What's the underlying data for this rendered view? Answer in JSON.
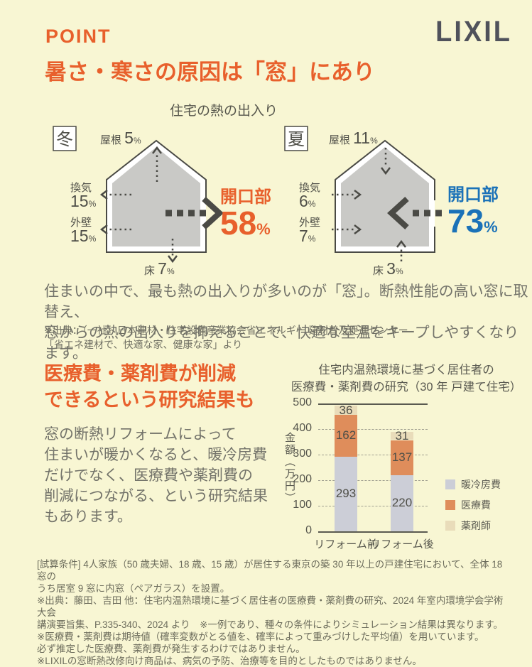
{
  "header": {
    "point": "POINT",
    "title": "暑さ・寒さの原因は「窓」にあり",
    "logo": "LIXIL"
  },
  "units": {
    "percent": "%"
  },
  "diagram": {
    "title": "住宅の熱の出入り",
    "winter": {
      "season": "冬",
      "roof_label": "屋根 ",
      "roof_value": "5",
      "vent_label": "換気",
      "vent_value": "15",
      "wall_label": "外壁",
      "wall_value": "15",
      "floor_label": "床 ",
      "floor_value": "7",
      "opening_label": "開口部",
      "opening_value": "58"
    },
    "summer": {
      "season": "夏",
      "roof_label": "屋根 ",
      "roof_value": "11",
      "vent_label": "換気",
      "vent_value": "6",
      "wall_label": "外壁",
      "wall_value": "7",
      "floor_label": "床 ",
      "floor_value": "3",
      "opening_label": "開口部",
      "opening_value": "73"
    }
  },
  "intro": {
    "text": "住まいの中で、最も熱の出入りが多いのが「窓」。断熱性能の高い窓に取替え、\n窓からの熱の出入りを抑えることで、快適な室温をキープしやすくなります。",
    "source": "※出典：（一社）日本建材・住宅設備産業協会省エネルギー 建材普及促進センター\n「省エネ建材で、快適な家、健康な家」より"
  },
  "research": {
    "heading": "医療費・薬剤費が削減\nできるという研究結果も",
    "body": "窓の断熱リフォームによって\n住まいが暖かくなると、暖冷房費\nだけでなく、医療費や薬剤費の\n削減につながる、という研究結果\nもあります。"
  },
  "chart_data": {
    "type": "bar",
    "stacked": true,
    "title": "住宅内温熱環境に基づく居住者の\n医療費・薬剤費の研究（30 年 戸建て住宅）",
    "categories": [
      "リフォーム前",
      "リフォーム後"
    ],
    "series": [
      {
        "name": "暖冷房費",
        "color": "#ccced7",
        "values": [
          293,
          220
        ]
      },
      {
        "name": "医療費",
        "color": "#df8d5b",
        "values": [
          162,
          137
        ]
      },
      {
        "name": "薬剤師",
        "color": "#e9dcba",
        "values": [
          36,
          31
        ]
      }
    ],
    "totals": [
      491,
      388
    ],
    "xlabel": "",
    "ylabel": "金額（万円）",
    "ylim": [
      0,
      500
    ],
    "yticks": [
      0,
      100,
      200,
      300,
      400,
      500
    ],
    "grid": "dashed-horizontal",
    "legend_position": "right"
  },
  "footer": {
    "notes": "[試算条件] 4人家族（50 歳夫婦、18 歳、15 歳）が居住する東京の築 30 年以上の戸建住宅において、全体 18 窓の\nうち居室 9 窓に内窓（ペアガラス）を設置。\n※出典：藤田、吉田 他：住宅内温熱環境に基づく居住者の医療費・薬剤費の研究、2024 年室内環境学会学術大会\n講演要旨集、P.335-340、2024 より　※一例であり、種々の条件によりシミュレーション結果は異なります。\n※医療費・薬剤費は期待値（確率変数がとる値を、確率によって重みづけした平均値）を用いています。\n必ず推定した医療費、薬剤費が発生するわけではありません。\n※LIXILの窓断熱改修向け商品は、病気の予防、治療等を目的としたものではありません。"
  },
  "colors": {
    "background": "#f8f6d3",
    "accent_orange": "#e8602c",
    "accent_blue": "#1b72b8",
    "house_fill": "#c9c9c6",
    "line_dark": "#4a4a45",
    "bar_gray": "#ccced7",
    "bar_orange": "#df8d5b",
    "bar_beige": "#e9dcba"
  }
}
